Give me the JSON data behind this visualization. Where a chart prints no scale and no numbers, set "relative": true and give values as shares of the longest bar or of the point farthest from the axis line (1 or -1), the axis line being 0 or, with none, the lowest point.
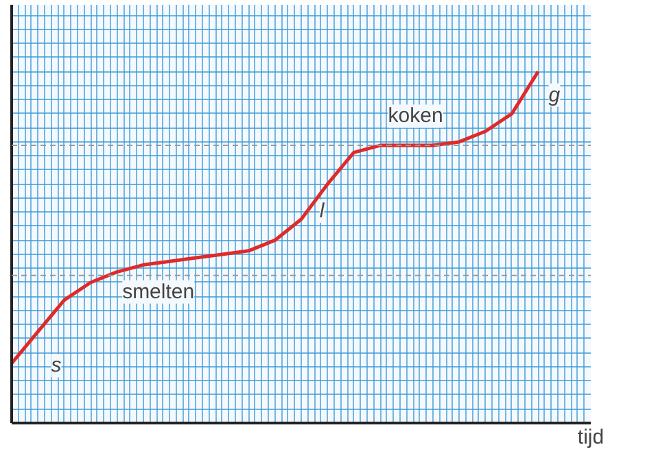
{
  "chart_data": {
    "type": "line",
    "xlabel": "tijd",
    "relative": true,
    "grid": true,
    "categories": [
      null,
      null,
      null,
      null,
      null,
      null,
      null,
      null,
      null,
      null,
      null,
      null,
      null,
      null,
      null,
      null,
      null,
      null,
      null,
      null,
      null
    ],
    "series": [
      {
        "color": "#e02a2a",
        "values": [
          0.17,
          0.26,
          0.35,
          0.4,
          0.43,
          0.45,
          0.46,
          0.47,
          0.48,
          0.49,
          0.52,
          0.58,
          0.68,
          0.77,
          0.79,
          0.79,
          0.79,
          0.8,
          0.83,
          0.88,
          1.0
        ]
      }
    ],
    "ref_lines": [
      {
        "axis": "y",
        "value": 0.42,
        "color": "#999999",
        "line_style": "dashed"
      },
      {
        "axis": "y",
        "value": 0.79,
        "color": "#999999",
        "line_style": "dashed"
      }
    ],
    "annotations": [
      "smelten",
      "koken",
      "s",
      "l",
      "g"
    ]
  }
}
